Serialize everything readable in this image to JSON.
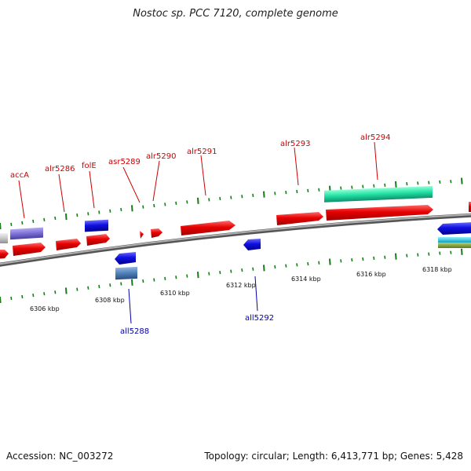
{
  "title": "Nostoc sp. PCC 7120, complete genome",
  "footer": {
    "accession": "Accession: NC_003272",
    "summary": "Topology: circular; Length: 6,413,771 bp; Genes: 5,428"
  },
  "colors": {
    "forward_gene": "#e60000",
    "reverse_gene": "#1010e0",
    "backbone": "#888888",
    "tick": "#1a7a1a",
    "rrna_teal": "#20e0a0",
    "purple": "#7b6fd6",
    "steelblue": "#4f7fb8",
    "cyan": "#20c0d0",
    "olive": "#7a9a30"
  },
  "scale_labels": [
    "6306 kbp",
    "6308 kbp",
    "6310 kbp",
    "6312 kbp",
    "6314 kbp",
    "6316 kbp",
    "6318 kbp"
  ],
  "gene_labels_forward": [
    "accA",
    "alr5286",
    "folE",
    "asr5289",
    "alr5290",
    "alr5291",
    "alr5293",
    "alr5294"
  ],
  "gene_labels_reverse": [
    "all5288",
    "all5292"
  ]
}
